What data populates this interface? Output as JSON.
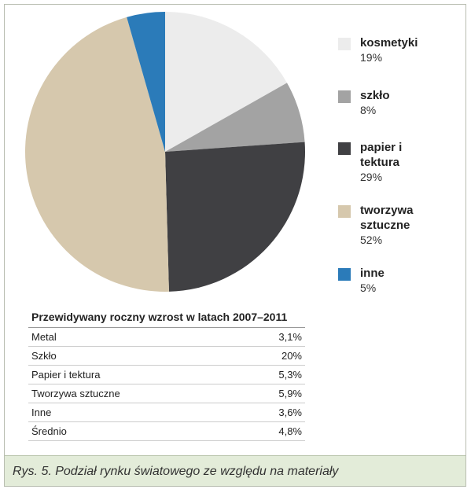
{
  "chart_data": {
    "type": "pie",
    "categories": [
      "kosmetyki",
      "szkło",
      "papier i tektura",
      "tworzywa sztuczne",
      "inne"
    ],
    "values": [
      19,
      8,
      29,
      52,
      5
    ],
    "value_labels": [
      "19%",
      "8%",
      "29%",
      "52%",
      "5%"
    ],
    "colors": [
      "#ececec",
      "#a3a3a3",
      "#404043",
      "#d6c8ad",
      "#2b7bb9"
    ]
  },
  "table": {
    "title": "Przewidywany roczny wzrost w latach 2007–2011",
    "rows": [
      [
        "Metal",
        "3,1%"
      ],
      [
        "Szkło",
        "20%"
      ],
      [
        "Papier i tektura",
        "5,3%"
      ],
      [
        "Tworzywa sztuczne",
        "5,9%"
      ],
      [
        "Inne",
        "3,6%"
      ],
      [
        "Średnio",
        "4,8%"
      ]
    ]
  },
  "caption": "Rys. 5. Podział rynku światowego ze względu na materiały"
}
